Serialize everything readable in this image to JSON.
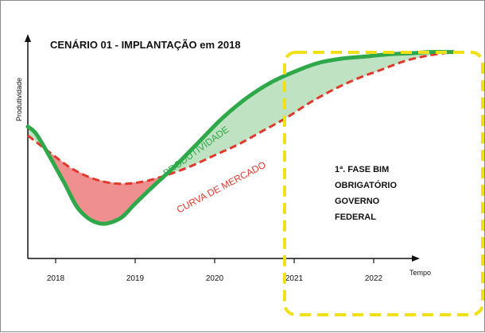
{
  "chart_data": {
    "type": "line",
    "title": "CENÁRIO 01 - IMPLANTAÇÃO em 2018",
    "ylabel": "Produtividade",
    "xlabel": "Tempo",
    "x_ticks": [
      "2018",
      "2019",
      "2020",
      "2021",
      "2022"
    ],
    "series": [
      {
        "name": "PRODUTIVIDADE",
        "color": "#2fa84a",
        "x": [
          2017.65,
          2017.75,
          2017.9,
          2018.1,
          2018.3,
          2018.55,
          2018.8,
          2019.0,
          2019.2,
          2019.5,
          2019.8,
          2020.1,
          2020.4,
          2020.7,
          2021.0,
          2021.3,
          2021.6,
          2021.9,
          2022.2,
          2022.5,
          2022.7,
          2023.0
        ],
        "y": [
          0.6,
          0.57,
          0.48,
          0.35,
          0.22,
          0.16,
          0.18,
          0.25,
          0.32,
          0.42,
          0.53,
          0.64,
          0.73,
          0.8,
          0.85,
          0.89,
          0.91,
          0.92,
          0.93,
          0.935,
          0.94,
          0.94
        ]
      },
      {
        "name": "CURVA DE MERCADO",
        "color": "#e0382b",
        "x": [
          2017.65,
          2017.9,
          2018.2,
          2018.5,
          2018.8,
          2019.1,
          2019.4,
          2019.7,
          2020.0,
          2020.3,
          2020.6,
          2020.9,
          2021.2,
          2021.5,
          2021.8,
          2022.1,
          2022.4,
          2022.7,
          2023.0
        ],
        "y": [
          0.56,
          0.49,
          0.41,
          0.36,
          0.34,
          0.35,
          0.38,
          0.42,
          0.47,
          0.52,
          0.58,
          0.64,
          0.71,
          0.77,
          0.82,
          0.86,
          0.9,
          0.925,
          0.94
        ]
      }
    ],
    "xlim": [
      2017.65,
      2023.35
    ],
    "ylim": [
      0,
      1
    ],
    "grid": false,
    "shading": [
      {
        "between": "PRODUTIVIDADE below CURVA DE MERCADO",
        "color": "#ef8f8f"
      },
      {
        "between": "PRODUTIVIDADE above CURVA DE MERCADO",
        "color": "#bfe3c2"
      }
    ],
    "highlight_box": {
      "x_from": 2020.8,
      "x_to": 2023.35,
      "color": "#f0e01a",
      "style": "dashed"
    },
    "annotations": {
      "productivity_label": "PRODUTIVIDADE",
      "market_label": "CURVA DE MERCADO",
      "note_lines": [
        "1ª. FASE BIM",
        "OBRIGATÓRIO",
        "GOVERNO",
        "FEDERAL"
      ]
    }
  }
}
